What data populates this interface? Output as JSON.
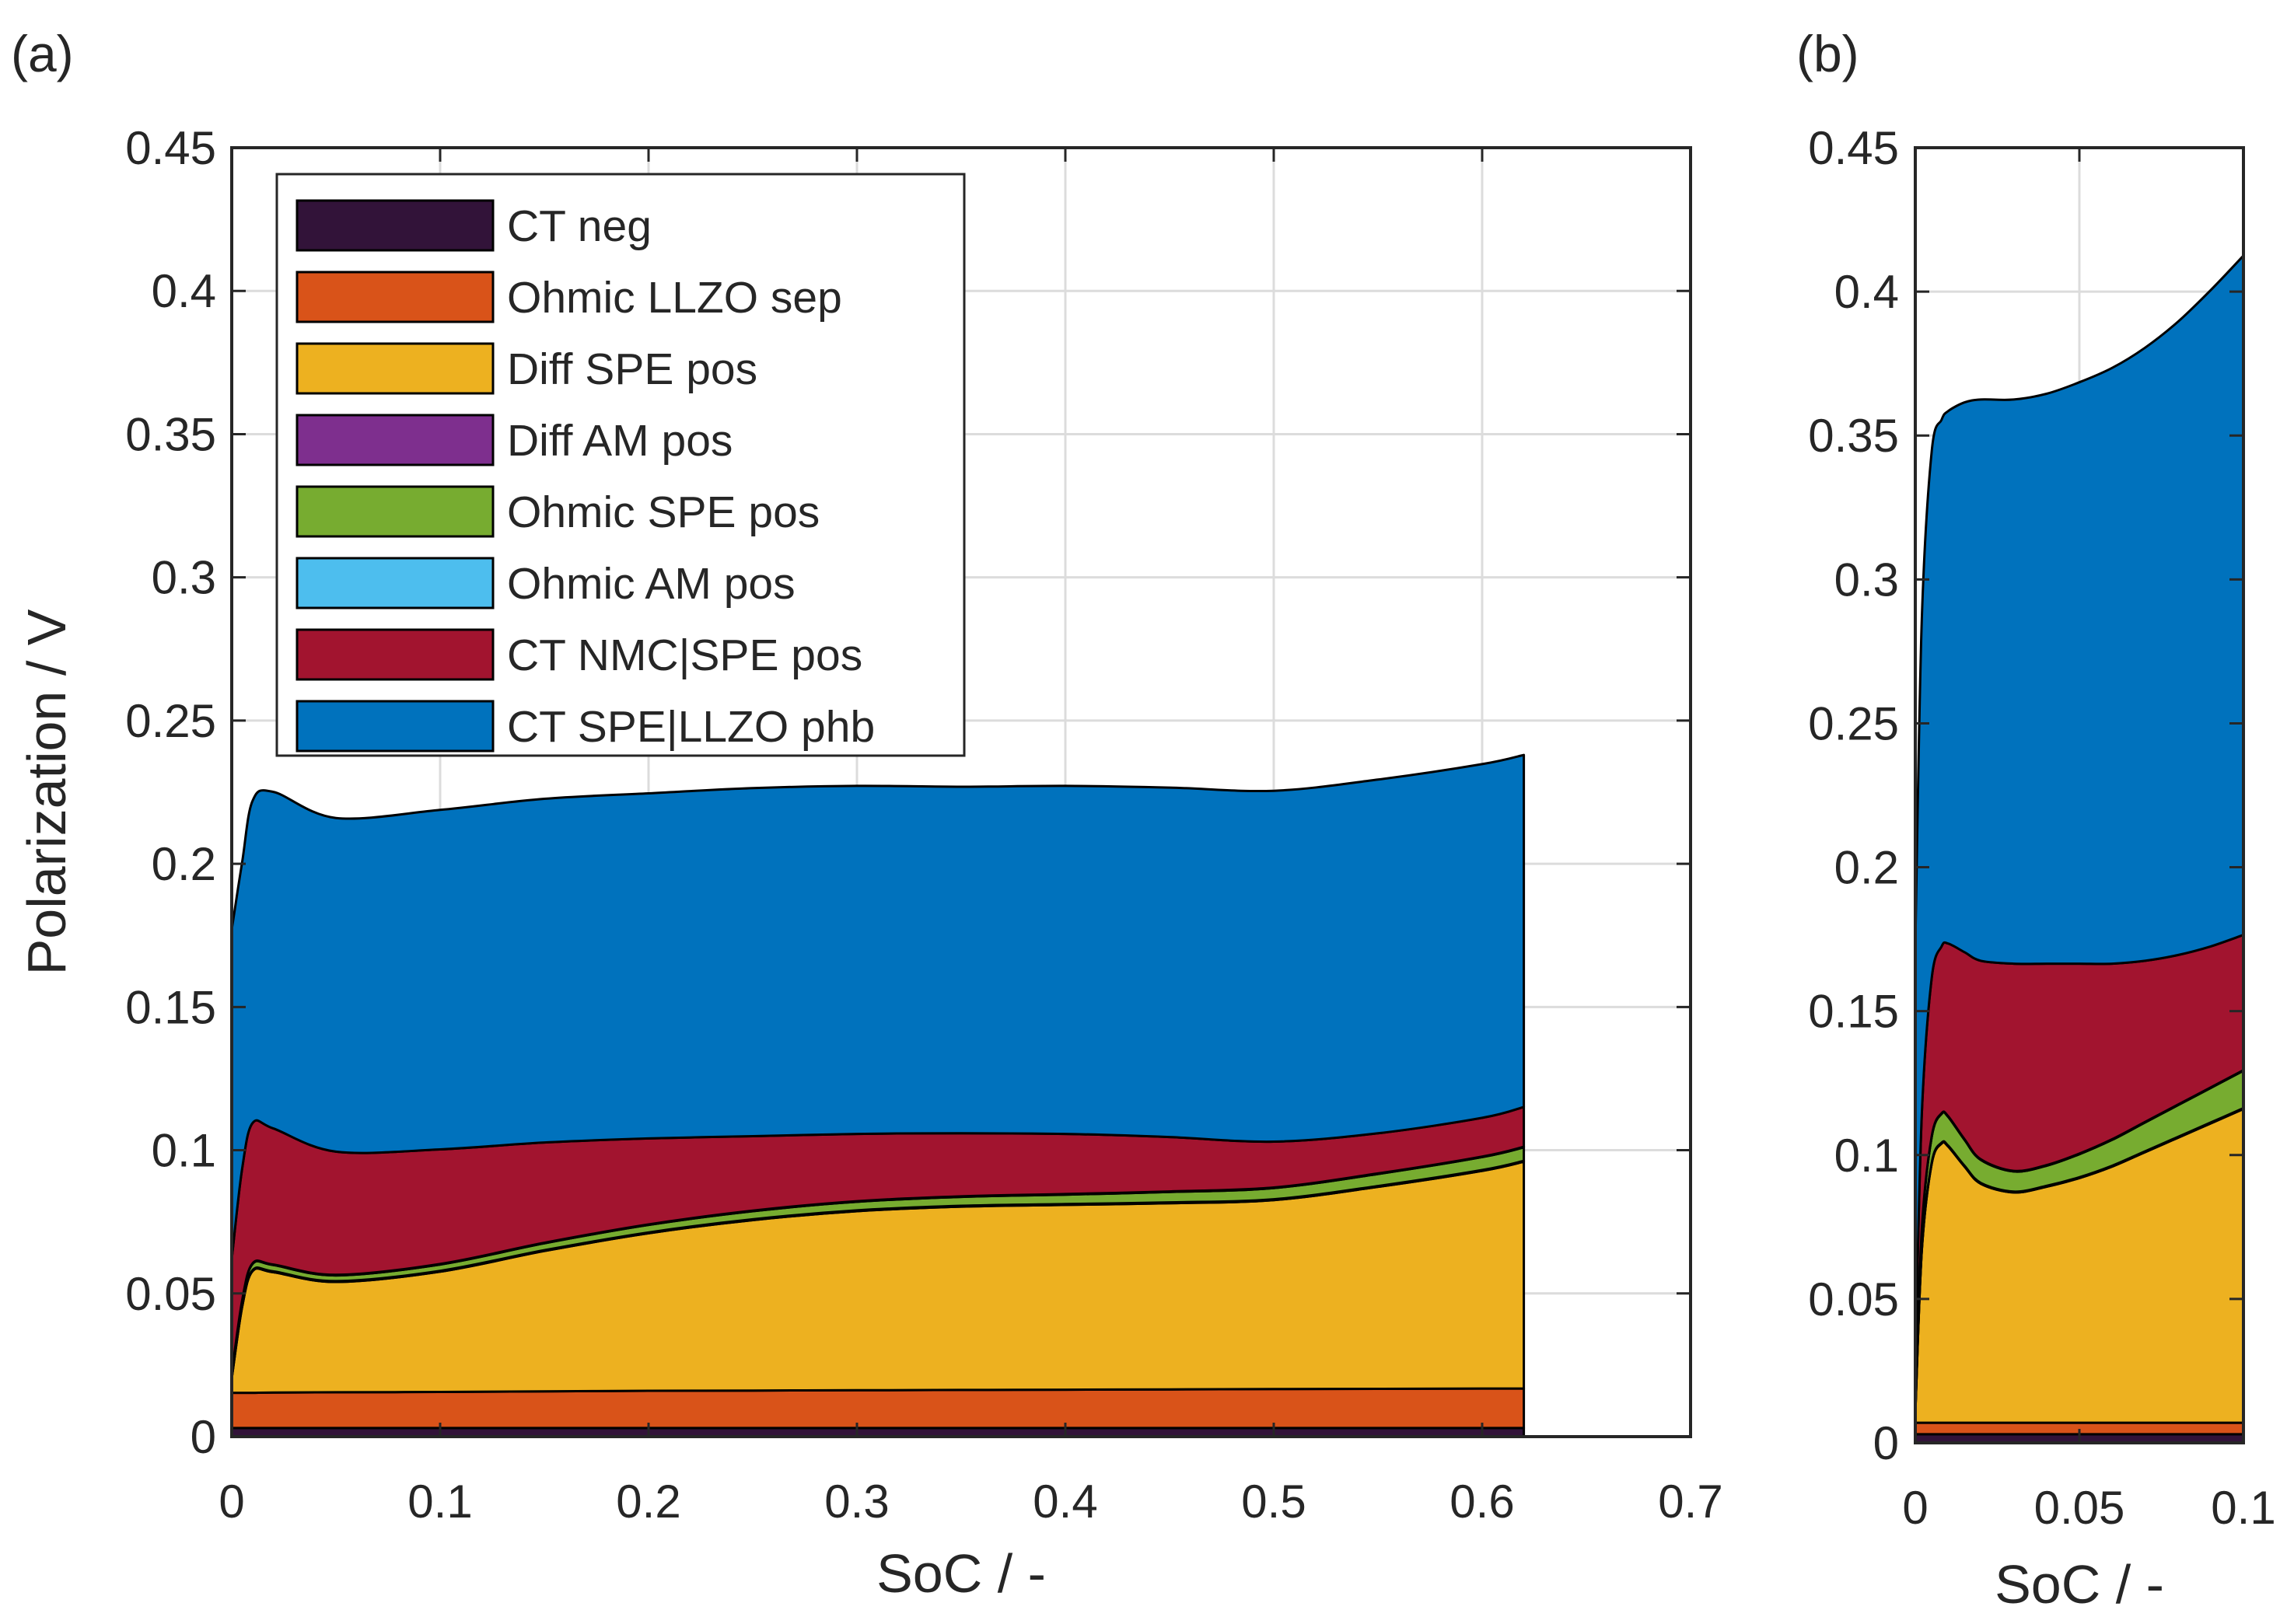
{
  "chart_data": [
    {
      "panel_label": "(a)",
      "type": "area",
      "stacked": true,
      "xlabel": "SoC / -",
      "ylabel": "Polarization / V",
      "xlim": [
        0,
        0.7
      ],
      "ylim": [
        0,
        0.45
      ],
      "xticks": [
        "0",
        "0.1",
        "0.2",
        "0.3",
        "0.4",
        "0.5",
        "0.6",
        "0.7"
      ],
      "yticks": [
        "0",
        "0.05",
        "0.1",
        "0.15",
        "0.2",
        "0.25",
        "0.3",
        "0.35",
        "0.4",
        "0.45"
      ],
      "grid": true,
      "legend_position": "top-left",
      "x": [
        0,
        0.005,
        0.01,
        0.02,
        0.05,
        0.1,
        0.15,
        0.2,
        0.25,
        0.3,
        0.35,
        0.4,
        0.45,
        0.5,
        0.55,
        0.6,
        0.62
      ],
      "series": [
        {
          "name": "CT neg",
          "color": "#321339",
          "values": [
            0.003,
            0.003,
            0.003,
            0.003,
            0.003,
            0.003,
            0.003,
            0.003,
            0.003,
            0.003,
            0.003,
            0.003,
            0.003,
            0.003,
            0.003,
            0.003,
            0.003
          ]
        },
        {
          "name": "Ohmic LLZO sep",
          "color": "#D95319",
          "values": [
            0.0123,
            0.0123,
            0.0123,
            0.0124,
            0.0125,
            0.0126,
            0.0128,
            0.013,
            0.0131,
            0.0132,
            0.0133,
            0.0134,
            0.0135,
            0.0136,
            0.0137,
            0.0138,
            0.0138
          ]
        },
        {
          "name": "Diff SPE pos",
          "color": "#EDB120",
          "values": [
            0.005,
            0.03,
            0.0425,
            0.042,
            0.0385,
            0.042,
            0.049,
            0.055,
            0.0595,
            0.0625,
            0.064,
            0.0645,
            0.065,
            0.066,
            0.0705,
            0.076,
            0.0792
          ]
        },
        {
          "name": "Diff AM pos",
          "color": "#7E2F8E",
          "values": [
            0.0003,
            0.0003,
            0.0003,
            0.0003,
            0.0003,
            0.0003,
            0.0003,
            0.0003,
            0.0003,
            0.0003,
            0.0003,
            0.0003,
            0.0003,
            0.0003,
            0.0003,
            0.0003,
            0.0003
          ]
        },
        {
          "name": "Ohmic SPE pos",
          "color": "#77AC30",
          "values": [
            0.0012,
            0.0018,
            0.0022,
            0.0022,
            0.002,
            0.0022,
            0.0024,
            0.0026,
            0.0028,
            0.003,
            0.0031,
            0.0033,
            0.0036,
            0.0039,
            0.0042,
            0.0045,
            0.0047
          ]
        },
        {
          "name": "Ohmic AM pos",
          "color": "#4DBEEE",
          "values": [
            0.0002,
            0.0002,
            0.0002,
            0.0002,
            0.0002,
            0.0002,
            0.0002,
            0.0002,
            0.0002,
            0.0002,
            0.0002,
            0.0002,
            0.0002,
            0.0002,
            0.0002,
            0.0002,
            0.0002
          ]
        },
        {
          "name": "CT NMC|SPE pos",
          "color": "#A2142F",
          "values": [
            0.04,
            0.046,
            0.049,
            0.0475,
            0.043,
            0.04,
            0.035,
            0.03,
            0.026,
            0.0235,
            0.022,
            0.021,
            0.019,
            0.016,
            0.014,
            0.0135,
            0.0139
          ]
        },
        {
          "name": "CT SPE|LLZO phb",
          "color": "#0072BD",
          "values": [
            0.115,
            0.107,
            0.1125,
            0.1175,
            0.1165,
            0.1185,
            0.12,
            0.1205,
            0.1215,
            0.1215,
            0.121,
            0.1215,
            0.122,
            0.1225,
            0.1235,
            0.1235,
            0.1229
          ]
        }
      ]
    },
    {
      "panel_label": "(b)",
      "type": "area",
      "stacked": true,
      "xlabel": "SoC / -",
      "ylabel": "",
      "xlim": [
        0,
        0.1
      ],
      "ylim": [
        0,
        0.45
      ],
      "xticks": [
        "0",
        "0.05",
        "0.1"
      ],
      "yticks": [
        "0",
        "0.05",
        "0.1",
        "0.15",
        "0.2",
        "0.25",
        "0.3",
        "0.35",
        "0.4",
        "0.45"
      ],
      "grid": true,
      "x": [
        0,
        0.002,
        0.005,
        0.008,
        0.01,
        0.015,
        0.02,
        0.03,
        0.04,
        0.05,
        0.06,
        0.07,
        0.08,
        0.09,
        0.1
      ],
      "series": [
        {
          "name": "CT neg",
          "color": "#321339",
          "values": [
            0.003,
            0.003,
            0.003,
            0.003,
            0.003,
            0.003,
            0.003,
            0.003,
            0.003,
            0.003,
            0.003,
            0.003,
            0.003,
            0.003,
            0.003
          ]
        },
        {
          "name": "Ohmic LLZO sep",
          "color": "#D95319",
          "values": [
            0.004,
            0.004,
            0.004,
            0.004,
            0.004,
            0.004,
            0.004,
            0.004,
            0.004,
            0.004,
            0.004,
            0.004,
            0.004,
            0.004,
            0.004
          ]
        },
        {
          "name": "Diff SPE pos",
          "color": "#EDB120",
          "values": [
            0.003,
            0.06,
            0.09,
            0.097,
            0.096,
            0.089,
            0.083,
            0.08,
            0.082,
            0.085,
            0.089,
            0.094,
            0.099,
            0.104,
            0.109
          ]
        },
        {
          "name": "Diff AM pos",
          "color": "#7E2F8E",
          "values": [
            0.0003,
            0.0003,
            0.0003,
            0.0003,
            0.0003,
            0.0003,
            0.0003,
            0.0003,
            0.0003,
            0.0003,
            0.0003,
            0.0003,
            0.0003,
            0.0003,
            0.0003
          ]
        },
        {
          "name": "Ohmic SPE pos",
          "color": "#77AC30",
          "values": [
            0.002,
            0.007,
            0.009,
            0.01,
            0.01,
            0.009,
            0.008,
            0.007,
            0.007,
            0.008,
            0.009,
            0.01,
            0.011,
            0.012,
            0.013
          ]
        },
        {
          "name": "Ohmic AM pos",
          "color": "#4DBEEE",
          "values": [
            0.0002,
            0.0002,
            0.0002,
            0.0002,
            0.0002,
            0.0002,
            0.0002,
            0.0002,
            0.0002,
            0.0002,
            0.0002,
            0.0002,
            0.0002,
            0.0002,
            0.0002
          ]
        },
        {
          "name": "CT NMC|SPE pos",
          "color": "#A2142F",
          "values": [
            0.015,
            0.04,
            0.055,
            0.058,
            0.06,
            0.065,
            0.069,
            0.072,
            0.07,
            0.066,
            0.061,
            0.056,
            0.052,
            0.049,
            0.047
          ]
        },
        {
          "name": "CT SPE|LLZO phb",
          "color": "#0072BD",
          "values": [
            0.145,
            0.172,
            0.183,
            0.183,
            0.185,
            0.191,
            0.195,
            0.196,
            0.198,
            0.202,
            0.207,
            0.213,
            0.22,
            0.228,
            0.236
          ]
        }
      ]
    }
  ]
}
